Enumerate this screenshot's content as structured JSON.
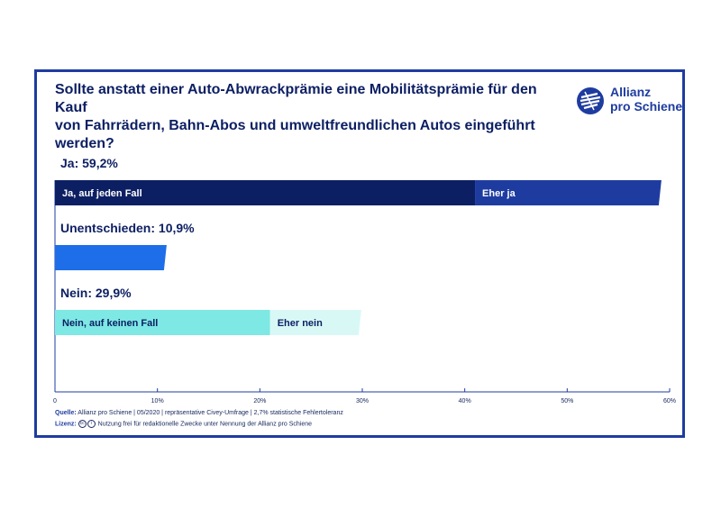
{
  "colors": {
    "frame": "#1e3ca0",
    "title": "#0c1f63",
    "ja_strong": "#0c1f63",
    "ja_weak": "#1e3ca0",
    "unentschieden": "#1d6ee8",
    "nein_strong": "#7ee8e4",
    "nein_weak": "#d8f8f6",
    "axis": "#1e3ca0"
  },
  "header": {
    "title": "Sollte anstatt einer Auto-Abwrackprämie eine Mobilitätsprämie für den Kauf\nvon Fahrrädern, Bahn-Abos und umweltfreundlichen Autos eingeführt werden?",
    "logo_text": "Allianz\npro Schiene",
    "logo_icon": "allianz-pro-schiene-logo"
  },
  "chart_data": {
    "type": "bar",
    "orientation": "horizontal-stacked",
    "xlim": [
      0,
      60
    ],
    "xticks": [
      "0",
      "10%",
      "20%",
      "30%",
      "40%",
      "50%",
      "60%"
    ],
    "grid": false,
    "groups": [
      {
        "label": "Ja: 59,2%",
        "segments": [
          {
            "name": "Ja, auf jeden Fall",
            "value": 41.0,
            "color": "#0c1f63",
            "text_color": "#ffffff"
          },
          {
            "name": "Eher ja",
            "value": 18.2,
            "color": "#1e3ca0",
            "text_color": "#ffffff"
          }
        ]
      },
      {
        "label": "Unentschieden: 10,9%",
        "segments": [
          {
            "name": "",
            "value": 10.9,
            "color": "#1d6ee8",
            "text_color": "#ffffff"
          }
        ]
      },
      {
        "label": "Nein: 29,9%",
        "segments": [
          {
            "name": "Nein, auf keinen Fall",
            "value": 21.0,
            "color": "#7ee8e4",
            "text_color": "#0c1f63"
          },
          {
            "name": "Eher nein",
            "value": 8.9,
            "color": "#d8f8f6",
            "text_color": "#0c1f63"
          }
        ]
      }
    ]
  },
  "footer": {
    "source_label": "Quelle:",
    "source_text": "Allianz pro Schiene | 05/2020 | repräsentative Civey-Umfrage | 2,7% statistische Fehlertoleranz",
    "license_label": "Lizenz:",
    "license_icons": [
      "cc-icon",
      "by-icon"
    ],
    "license_text": "Nutzung frei für redaktionelle Zwecke unter Nennung der Allianz pro Schiene"
  }
}
